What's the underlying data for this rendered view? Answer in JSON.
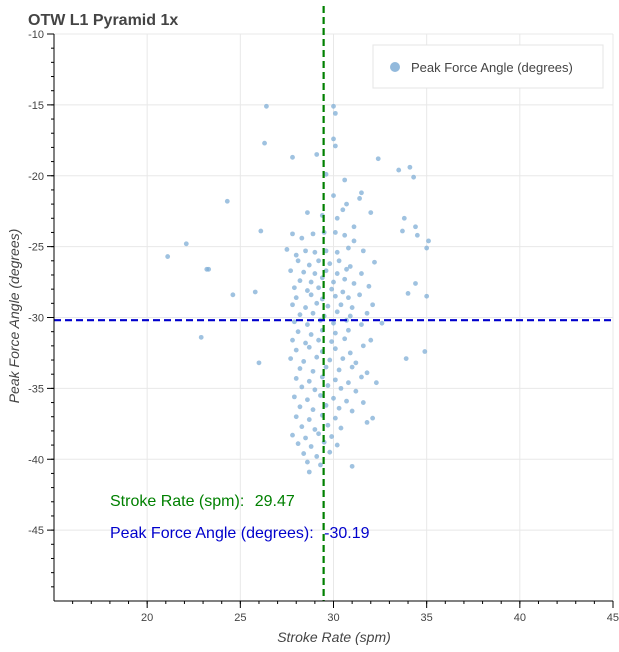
{
  "chart_data": {
    "type": "scatter",
    "title": "OTW L1 Pyramid 1x",
    "xlabel": "Stroke Rate (spm)",
    "ylabel": "Peak Force Angle (degrees)",
    "xlim": [
      15,
      45
    ],
    "ylim": [
      -50,
      -10
    ],
    "x_ticks": [
      20,
      25,
      30,
      35,
      40,
      45
    ],
    "x_tick_labels": [
      "20",
      "25",
      "30",
      "35",
      "40",
      "45"
    ],
    "y_ticks": [
      -10,
      -15,
      -20,
      -25,
      -30,
      -35,
      -40,
      -45
    ],
    "y_tick_labels": [
      "-10",
      "-15",
      "-20",
      "-25",
      "-30",
      "-35",
      "-40",
      "-45"
    ],
    "grid": true,
    "legend": {
      "placement": "top-right",
      "entries": [
        "Peak Force Angle (degrees)"
      ]
    },
    "series": [
      {
        "name": "Peak Force Angle (degrees)",
        "color": "#7fadd6",
        "points": [
          [
            26.4,
            -15.1
          ],
          [
            30.0,
            -15.1
          ],
          [
            30.1,
            -15.6
          ],
          [
            26.3,
            -17.7
          ],
          [
            30.0,
            -17.4
          ],
          [
            30.1,
            -17.9
          ],
          [
            27.8,
            -18.7
          ],
          [
            29.1,
            -18.5
          ],
          [
            32.4,
            -18.8
          ],
          [
            33.5,
            -19.6
          ],
          [
            34.1,
            -19.4
          ],
          [
            34.3,
            -20.1
          ],
          [
            29.6,
            -19.9
          ],
          [
            30.6,
            -20.3
          ],
          [
            24.3,
            -21.8
          ],
          [
            31.5,
            -21.2
          ],
          [
            31.4,
            -21.6
          ],
          [
            30.0,
            -21.4
          ],
          [
            30.5,
            -22.4
          ],
          [
            30.7,
            -22.0
          ],
          [
            32.0,
            -22.6
          ],
          [
            28.6,
            -22.6
          ],
          [
            29.4,
            -22.8
          ],
          [
            30.2,
            -23.0
          ],
          [
            31.1,
            -23.6
          ],
          [
            33.8,
            -23.0
          ],
          [
            34.4,
            -23.6
          ],
          [
            34.5,
            -24.2
          ],
          [
            33.7,
            -23.9
          ],
          [
            26.1,
            -23.9
          ],
          [
            27.8,
            -24.1
          ],
          [
            28.3,
            -24.4
          ],
          [
            28.9,
            -24.1
          ],
          [
            29.5,
            -24.0
          ],
          [
            30.1,
            -24.0
          ],
          [
            30.6,
            -24.2
          ],
          [
            31.1,
            -24.6
          ],
          [
            22.1,
            -24.8
          ],
          [
            27.5,
            -25.2
          ],
          [
            28.0,
            -25.6
          ],
          [
            28.5,
            -25.3
          ],
          [
            29.0,
            -25.4
          ],
          [
            29.6,
            -25.3
          ],
          [
            30.2,
            -25.4
          ],
          [
            30.8,
            -25.1
          ],
          [
            31.6,
            -25.3
          ],
          [
            35.1,
            -24.6
          ],
          [
            35.0,
            -25.1
          ],
          [
            21.1,
            -25.7
          ],
          [
            28.1,
            -26.0
          ],
          [
            28.7,
            -26.3
          ],
          [
            29.2,
            -26.0
          ],
          [
            29.8,
            -26.2
          ],
          [
            30.3,
            -26.0
          ],
          [
            30.9,
            -26.4
          ],
          [
            32.2,
            -26.1
          ],
          [
            23.2,
            -26.6
          ],
          [
            23.3,
            -26.6
          ],
          [
            27.7,
            -26.7
          ],
          [
            28.4,
            -26.8
          ],
          [
            29.0,
            -26.9
          ],
          [
            29.6,
            -26.7
          ],
          [
            30.2,
            -26.9
          ],
          [
            30.7,
            -26.6
          ],
          [
            31.5,
            -26.9
          ],
          [
            28.2,
            -27.4
          ],
          [
            28.8,
            -27.5
          ],
          [
            29.4,
            -27.2
          ],
          [
            30.0,
            -27.5
          ],
          [
            30.6,
            -27.3
          ],
          [
            31.1,
            -27.6
          ],
          [
            27.9,
            -27.9
          ],
          [
            28.6,
            -28.1
          ],
          [
            29.2,
            -27.9
          ],
          [
            29.9,
            -28.0
          ],
          [
            30.5,
            -28.2
          ],
          [
            31.9,
            -27.8
          ],
          [
            34.4,
            -27.6
          ],
          [
            25.8,
            -28.2
          ],
          [
            24.6,
            -28.4
          ],
          [
            28.0,
            -28.6
          ],
          [
            28.8,
            -28.4
          ],
          [
            29.4,
            -28.7
          ],
          [
            30.1,
            -28.5
          ],
          [
            30.8,
            -28.6
          ],
          [
            31.4,
            -28.4
          ],
          [
            35.0,
            -28.5
          ],
          [
            34.0,
            -28.3
          ],
          [
            27.8,
            -29.1
          ],
          [
            28.5,
            -29.3
          ],
          [
            29.1,
            -29.0
          ],
          [
            29.7,
            -29.2
          ],
          [
            30.4,
            -29.1
          ],
          [
            31.0,
            -29.3
          ],
          [
            32.1,
            -29.1
          ],
          [
            28.2,
            -29.8
          ],
          [
            28.9,
            -29.7
          ],
          [
            29.5,
            -29.9
          ],
          [
            30.2,
            -29.6
          ],
          [
            30.9,
            -29.9
          ],
          [
            31.8,
            -29.7
          ],
          [
            27.9,
            -30.3
          ],
          [
            28.6,
            -30.5
          ],
          [
            29.3,
            -30.2
          ],
          [
            30.0,
            -30.4
          ],
          [
            30.7,
            -30.2
          ],
          [
            31.5,
            -30.5
          ],
          [
            32.6,
            -30.4
          ],
          [
            28.1,
            -31.0
          ],
          [
            28.8,
            -31.2
          ],
          [
            29.4,
            -30.9
          ],
          [
            30.1,
            -31.1
          ],
          [
            30.8,
            -30.9
          ],
          [
            22.9,
            -31.4
          ],
          [
            27.8,
            -31.6
          ],
          [
            28.5,
            -31.8
          ],
          [
            29.2,
            -31.6
          ],
          [
            29.9,
            -31.7
          ],
          [
            30.6,
            -31.5
          ],
          [
            32.0,
            -31.6
          ],
          [
            28.0,
            -32.3
          ],
          [
            28.7,
            -32.1
          ],
          [
            29.4,
            -32.4
          ],
          [
            30.1,
            -32.2
          ],
          [
            30.9,
            -32.5
          ],
          [
            31.6,
            -32.0
          ],
          [
            34.9,
            -32.4
          ],
          [
            27.7,
            -32.9
          ],
          [
            28.4,
            -33.1
          ],
          [
            29.1,
            -32.8
          ],
          [
            29.8,
            -33.0
          ],
          [
            30.5,
            -32.9
          ],
          [
            31.2,
            -33.2
          ],
          [
            26.0,
            -33.2
          ],
          [
            33.9,
            -32.9
          ],
          [
            28.2,
            -33.6
          ],
          [
            28.9,
            -33.8
          ],
          [
            29.6,
            -33.5
          ],
          [
            30.3,
            -33.7
          ],
          [
            31.0,
            -33.5
          ],
          [
            31.8,
            -33.9
          ],
          [
            28.0,
            -34.3
          ],
          [
            28.7,
            -34.5
          ],
          [
            29.4,
            -34.2
          ],
          [
            30.1,
            -34.4
          ],
          [
            30.8,
            -34.6
          ],
          [
            31.5,
            -34.2
          ],
          [
            28.3,
            -34.9
          ],
          [
            29.0,
            -35.1
          ],
          [
            29.7,
            -34.8
          ],
          [
            30.4,
            -35.0
          ],
          [
            31.2,
            -35.2
          ],
          [
            32.3,
            -34.6
          ],
          [
            27.9,
            -35.6
          ],
          [
            28.6,
            -35.8
          ],
          [
            29.3,
            -35.5
          ],
          [
            30.0,
            -35.7
          ],
          [
            30.7,
            -35.9
          ],
          [
            31.6,
            -36.0
          ],
          [
            28.2,
            -36.3
          ],
          [
            28.9,
            -36.5
          ],
          [
            29.6,
            -36.2
          ],
          [
            30.3,
            -36.4
          ],
          [
            31.0,
            -36.6
          ],
          [
            28.0,
            -37.0
          ],
          [
            28.7,
            -37.2
          ],
          [
            29.4,
            -36.9
          ],
          [
            30.1,
            -37.1
          ],
          [
            32.1,
            -37.1
          ],
          [
            31.8,
            -37.4
          ],
          [
            28.3,
            -37.7
          ],
          [
            29.0,
            -37.9
          ],
          [
            29.7,
            -37.6
          ],
          [
            30.4,
            -37.8
          ],
          [
            27.8,
            -38.3
          ],
          [
            28.5,
            -38.5
          ],
          [
            29.2,
            -38.2
          ],
          [
            29.9,
            -38.4
          ],
          [
            28.1,
            -38.9
          ],
          [
            28.8,
            -39.1
          ],
          [
            29.5,
            -38.8
          ],
          [
            30.2,
            -39.0
          ],
          [
            28.4,
            -39.6
          ],
          [
            29.1,
            -39.8
          ],
          [
            29.8,
            -39.5
          ],
          [
            28.6,
            -40.2
          ],
          [
            29.3,
            -40.4
          ],
          [
            31.0,
            -40.5
          ],
          [
            28.7,
            -40.9
          ]
        ]
      }
    ],
    "reference_lines": [
      {
        "orientation": "vertical",
        "value": 29.47,
        "color": "#008000",
        "label": "Stroke Rate (spm):",
        "value_label": "29.47"
      },
      {
        "orientation": "horizontal",
        "value": -30.19,
        "color": "#0000cc",
        "label": "Peak Force Angle (degrees):",
        "value_label": "-30.19"
      }
    ]
  }
}
